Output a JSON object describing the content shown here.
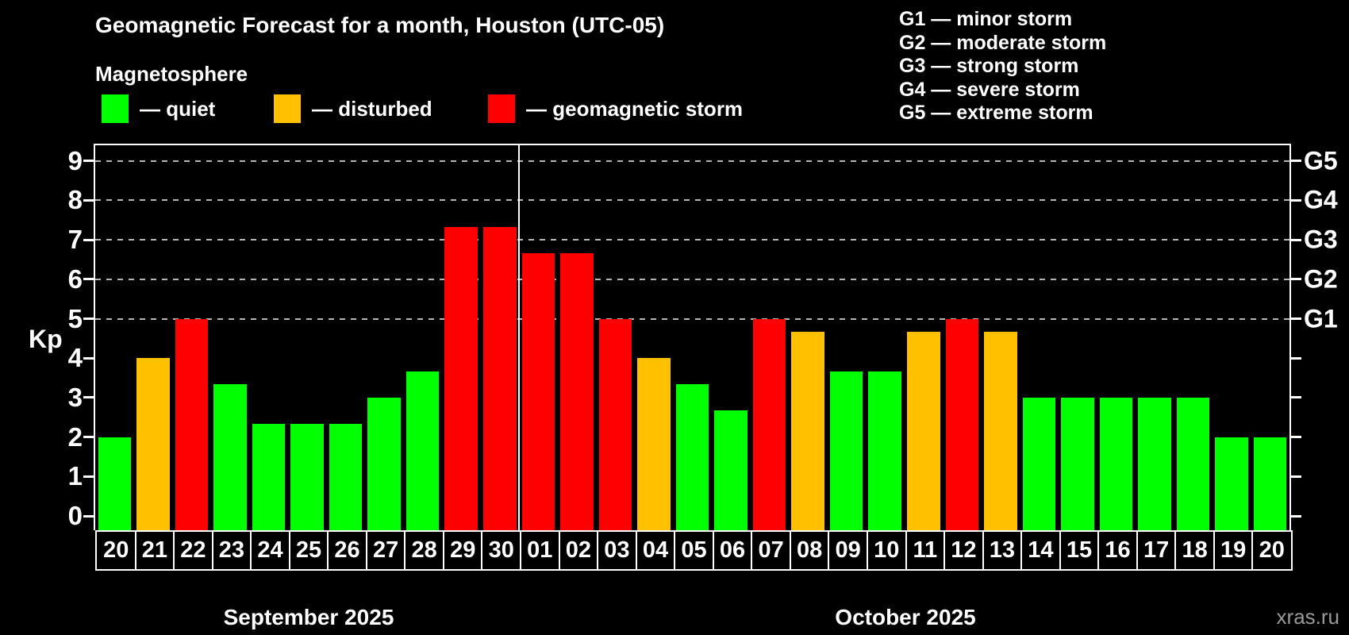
{
  "title": "Geomagnetic Forecast for a month, Houston (UTC-05)",
  "subtitle": "Magnetosphere",
  "legend": {
    "items": [
      {
        "key": "quiet",
        "label": "— quiet",
        "color": "#00ff00"
      },
      {
        "key": "disturbed",
        "label": "— disturbed",
        "color": "#ffc000"
      },
      {
        "key": "storm",
        "label": "— geomagnetic storm",
        "color": "#ff0000"
      }
    ]
  },
  "storm_scale_legend": [
    "G1 — minor storm",
    "G2 — moderate storm",
    "G3 — strong storm",
    "G4 — severe storm",
    "G5 — extreme storm"
  ],
  "watermark": "xras.ru",
  "chart_data": {
    "type": "bar",
    "title": "Geomagnetic Forecast for a month, Houston (UTC-05)",
    "ylabel": "Kp",
    "ylim": [
      0,
      9.4
    ],
    "yticks": [
      0,
      1,
      2,
      3,
      4,
      5,
      6,
      7,
      8,
      9
    ],
    "gridline_levels": [
      5,
      6,
      7,
      8,
      9
    ],
    "grid": "dashed-horizontal-only-at-storm-levels",
    "legend_position": "top",
    "right_axis_labels": [
      {
        "kp": 5,
        "text": "G1"
      },
      {
        "kp": 6,
        "text": "G2"
      },
      {
        "kp": 7,
        "text": "G3"
      },
      {
        "kp": 8,
        "text": "G4"
      },
      {
        "kp": 9,
        "text": "G5"
      }
    ],
    "months": [
      {
        "label": "September 2025",
        "days": 11
      },
      {
        "label": "October 2025",
        "days": 20
      }
    ],
    "bars": [
      {
        "day": "20",
        "kp": 2.0,
        "status": "quiet"
      },
      {
        "day": "21",
        "kp": 4.0,
        "status": "disturbed"
      },
      {
        "day": "22",
        "kp": 5.0,
        "status": "storm"
      },
      {
        "day": "23",
        "kp": 3.33,
        "status": "quiet"
      },
      {
        "day": "24",
        "kp": 2.33,
        "status": "quiet"
      },
      {
        "day": "25",
        "kp": 2.33,
        "status": "quiet"
      },
      {
        "day": "26",
        "kp": 2.33,
        "status": "quiet"
      },
      {
        "day": "27",
        "kp": 3.0,
        "status": "quiet"
      },
      {
        "day": "28",
        "kp": 3.67,
        "status": "quiet"
      },
      {
        "day": "29",
        "kp": 7.33,
        "status": "storm"
      },
      {
        "day": "30",
        "kp": 7.33,
        "status": "storm"
      },
      {
        "day": "01",
        "kp": 6.67,
        "status": "storm"
      },
      {
        "day": "02",
        "kp": 6.67,
        "status": "storm"
      },
      {
        "day": "03",
        "kp": 5.0,
        "status": "storm"
      },
      {
        "day": "04",
        "kp": 4.0,
        "status": "disturbed"
      },
      {
        "day": "05",
        "kp": 3.33,
        "status": "quiet"
      },
      {
        "day": "06",
        "kp": 2.67,
        "status": "quiet"
      },
      {
        "day": "07",
        "kp": 5.0,
        "status": "storm"
      },
      {
        "day": "08",
        "kp": 4.67,
        "status": "disturbed"
      },
      {
        "day": "09",
        "kp": 3.67,
        "status": "quiet"
      },
      {
        "day": "10",
        "kp": 3.67,
        "status": "quiet"
      },
      {
        "day": "11",
        "kp": 4.67,
        "status": "disturbed"
      },
      {
        "day": "12",
        "kp": 5.0,
        "status": "storm"
      },
      {
        "day": "13",
        "kp": 4.67,
        "status": "disturbed"
      },
      {
        "day": "14",
        "kp": 3.0,
        "status": "quiet"
      },
      {
        "day": "15",
        "kp": 3.0,
        "status": "quiet"
      },
      {
        "day": "16",
        "kp": 3.0,
        "status": "quiet"
      },
      {
        "day": "17",
        "kp": 3.0,
        "status": "quiet"
      },
      {
        "day": "18",
        "kp": 3.0,
        "status": "quiet"
      },
      {
        "day": "19",
        "kp": 2.0,
        "status": "quiet"
      },
      {
        "day": "20",
        "kp": 2.0,
        "status": "quiet"
      }
    ]
  }
}
